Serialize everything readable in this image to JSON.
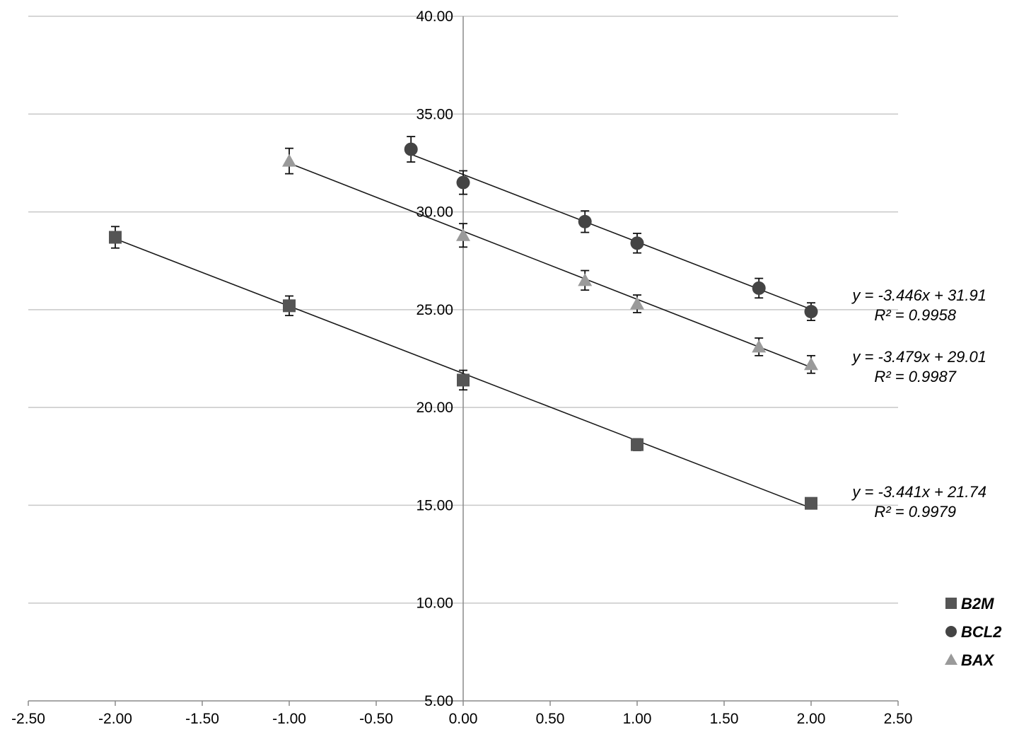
{
  "chart_data": {
    "type": "scatter",
    "title": "",
    "xlabel": "",
    "ylabel": "",
    "xlim": [
      -2.5,
      2.5
    ],
    "ylim": [
      5.0,
      40.0
    ],
    "x_ticks": [
      "-2.50",
      "-2.00",
      "-1.50",
      "-1.00",
      "-0.50",
      "0.00",
      "0.50",
      "1.00",
      "1.50",
      "2.00",
      "2.50"
    ],
    "y_ticks": [
      "5.00",
      "10.00",
      "15.00",
      "20.00",
      "25.00",
      "30.00",
      "35.00",
      "40.00"
    ],
    "grid": "horizontal",
    "legend_position": "right",
    "series": [
      {
        "name": "B2M",
        "marker": "square",
        "color": "#555555",
        "x": [
          -2.0,
          -1.0,
          0.0,
          1.0,
          2.0
        ],
        "y": [
          28.7,
          25.2,
          21.4,
          18.1,
          15.1
        ],
        "err": [
          0.55,
          0.5,
          0.5,
          0.3,
          0.2
        ],
        "trendline": {
          "slope": -3.441,
          "intercept": 21.74,
          "equation": "y = -3.441x + 21.74",
          "r2": "R² = 0.9979"
        }
      },
      {
        "name": "BCL2",
        "marker": "circle",
        "color": "#444444",
        "x": [
          -0.3,
          0.0,
          0.7,
          1.0,
          1.7,
          2.0
        ],
        "y": [
          33.2,
          31.5,
          29.5,
          28.4,
          26.1,
          24.9
        ],
        "err": [
          0.65,
          0.6,
          0.55,
          0.5,
          0.5,
          0.45
        ],
        "trendline": {
          "slope": -3.446,
          "intercept": 31.91,
          "equation": "y = -3.446x + 31.91",
          "r2": "R² = 0.9958"
        }
      },
      {
        "name": "BAX",
        "marker": "triangle",
        "color": "#9a9a9a",
        "x": [
          -1.0,
          0.0,
          0.7,
          1.0,
          1.7,
          2.0
        ],
        "y": [
          32.6,
          28.8,
          26.5,
          25.3,
          23.1,
          22.2
        ],
        "err": [
          0.65,
          0.6,
          0.5,
          0.45,
          0.45,
          0.45
        ],
        "trendline": {
          "slope": -3.479,
          "intercept": 29.01,
          "equation": "y = -3.479x + 29.01",
          "r2": "R² = 0.9987"
        }
      }
    ]
  }
}
